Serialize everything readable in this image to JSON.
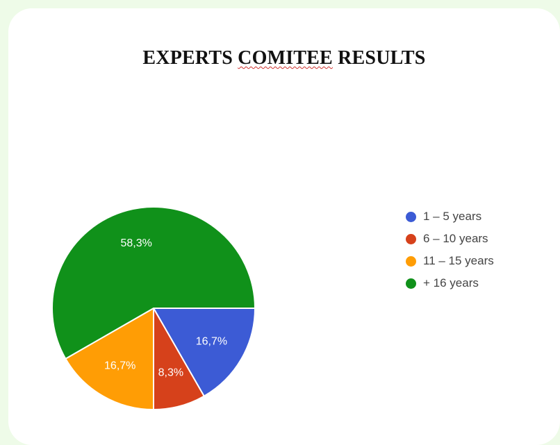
{
  "title_parts": {
    "before": "EXPERTS ",
    "flagged": "COMITEE",
    "after": " RESULTS"
  },
  "chart_data": {
    "type": "pie",
    "title": "EXPERTS COMITEE RESULTS",
    "legend_position": "right",
    "slices": [
      {
        "label": "1 – 5 years",
        "value": 16.7,
        "display": "16,7%",
        "color": "#3c5bd5"
      },
      {
        "label": "6 – 10 years",
        "value": 8.3,
        "display": "8,3%",
        "color": "#d6411b"
      },
      {
        "label": "11 – 15 years",
        "value": 16.7,
        "display": "16,7%",
        "color": "#ff9d05"
      },
      {
        "label": "+ 16 years",
        "value": 58.3,
        "display": "58,3%",
        "color": "#10911a"
      }
    ]
  }
}
